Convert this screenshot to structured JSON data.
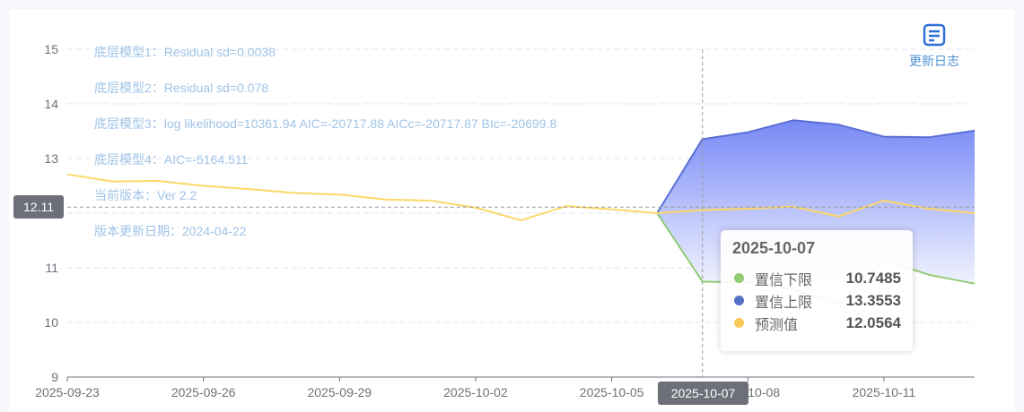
{
  "chart_data": {
    "type": "area",
    "x": [
      "2025-09-23",
      "2025-09-24",
      "2025-09-25",
      "2025-09-26",
      "2025-09-27",
      "2025-09-28",
      "2025-09-29",
      "2025-09-30",
      "2025-10-01",
      "2025-10-02",
      "2025-10-03",
      "2025-10-04",
      "2025-10-05",
      "2025-10-06",
      "2025-10-07",
      "2025-10-08",
      "2025-10-09",
      "2025-10-10",
      "2025-10-11",
      "2025-10-12",
      "2025-10-13"
    ],
    "x_ticks": [
      "2025-09-23",
      "2025-09-26",
      "2025-09-29",
      "2025-10-02",
      "2025-10-05",
      "2025-10-08",
      "2025-10-11"
    ],
    "ylim": [
      9,
      15
    ],
    "y_ticks": [
      9,
      10,
      11,
      12,
      13,
      14,
      15
    ],
    "series": [
      {
        "name": "预测值",
        "color": "#fdd766",
        "values": [
          12.71,
          12.58,
          12.59,
          12.5,
          12.44,
          12.37,
          12.34,
          12.25,
          12.23,
          12.1,
          11.87,
          12.13,
          12.07,
          12.0,
          12.0564,
          12.08,
          12.12,
          11.94,
          12.23,
          12.08,
          12.0
        ]
      },
      {
        "name": "置信上限",
        "color": "#5a6fd4",
        "values": [
          null,
          null,
          null,
          null,
          null,
          null,
          null,
          null,
          null,
          null,
          null,
          null,
          null,
          12.0,
          13.3553,
          13.48,
          13.7,
          13.62,
          13.4,
          13.39,
          13.51
        ]
      },
      {
        "name": "置信下限",
        "color": "#91cc75",
        "values": [
          null,
          null,
          null,
          null,
          null,
          null,
          null,
          null,
          null,
          null,
          null,
          null,
          null,
          12.0,
          10.7485,
          10.73,
          10.6,
          10.33,
          11.14,
          10.87,
          10.71
        ]
      }
    ],
    "crosshair": {
      "y_label": "12.11",
      "y_value": 12.11,
      "x_label": "2025-10-07",
      "x_index": 14
    },
    "annotations": [
      "底层模型1：Residual sd=0.0038",
      "底层模型2：Residual sd=0.078",
      "底层模型3：log likelihood=10361.94 AIC=-20717.88 AICc=-20717.87 BIc=-20699.8",
      "底层模型4：AIC=-5164.511",
      "当前版本：Ver 2.2",
      "版本更新日期：2024-04-22"
    ]
  },
  "tooltip": {
    "title": "2025-10-07",
    "rows": [
      {
        "name": "置信下限",
        "value": "10.7485",
        "color": "#91cc75"
      },
      {
        "name": "置信上限",
        "value": "13.3553",
        "color": "#5470c6"
      },
      {
        "name": "预测值",
        "value": "12.0564",
        "color": "#fac858"
      }
    ]
  },
  "toolbar": {
    "changelog_label": "更新日志",
    "icon": "document-icon"
  }
}
